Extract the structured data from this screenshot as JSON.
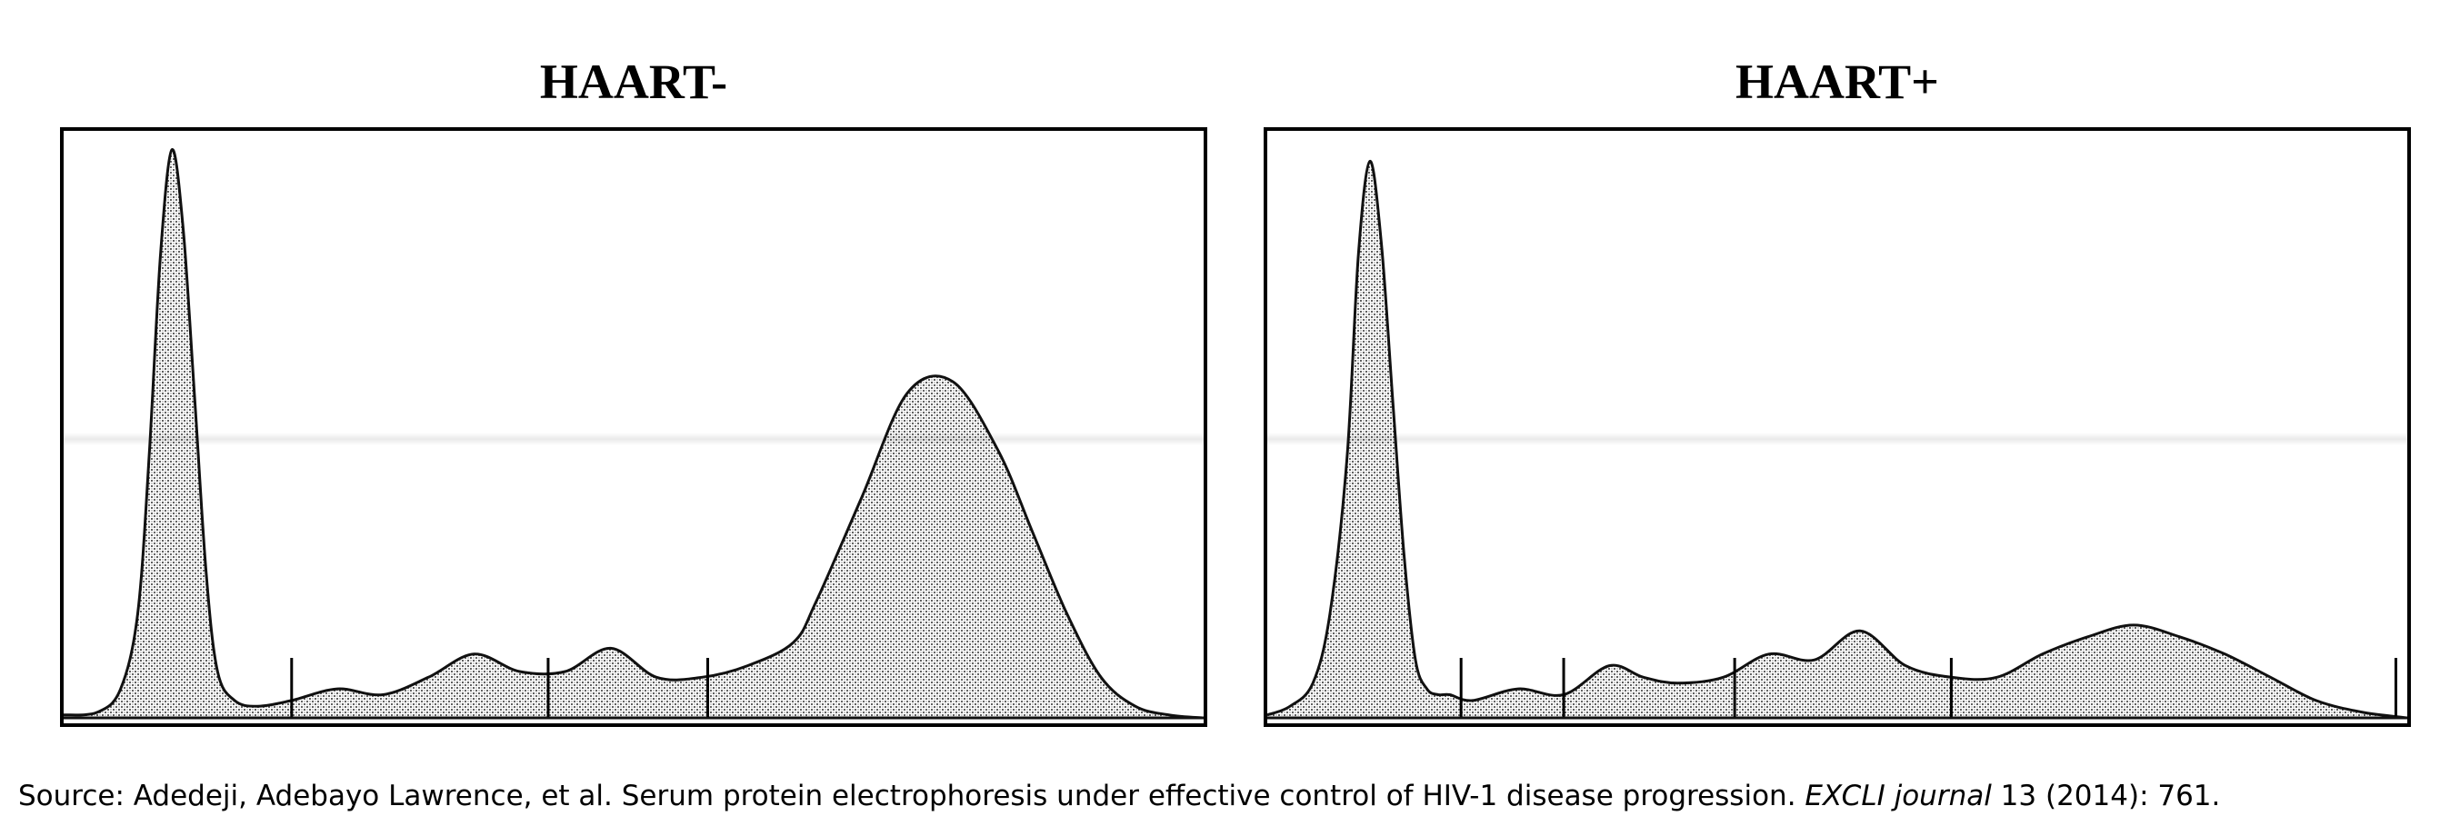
{
  "source": {
    "prefix": "Source: Adedeji, Adebayo Lawrence, et al. Serum protein electrophoresis under effective control of HIV-1 disease progression. ",
    "journal": "EXCLI journal",
    "suffix": " 13 (2014): 761."
  },
  "chart_data": [
    {
      "type": "area",
      "title": "HAART-",
      "xlabel": "",
      "ylabel": "",
      "xlim": [
        0,
        100
      ],
      "ylim": [
        0,
        100
      ],
      "grid": false,
      "x": [
        0,
        3,
        5,
        6.5,
        7.5,
        8.5,
        9.5,
        10.5,
        11.5,
        12.5,
        13.5,
        15,
        17,
        20,
        24,
        28,
        32,
        36,
        40,
        44,
        48,
        52,
        56,
        60,
        64,
        66,
        70,
        74,
        78,
        82,
        85,
        88,
        91,
        94,
        97,
        100
      ],
      "values": [
        0.5,
        1,
        5,
        18,
        45,
        80,
        98,
        84,
        55,
        25,
        8,
        3,
        2,
        3,
        5,
        4,
        7,
        11,
        8,
        8,
        12,
        7,
        7,
        9,
        13,
        20,
        38,
        56,
        58,
        46,
        32,
        18,
        7,
        2,
        0.5,
        0
      ],
      "fraction_dividers_x": [
        20,
        42.5,
        56.5
      ]
    },
    {
      "type": "area",
      "title": "HAART+",
      "xlabel": "",
      "ylabel": "",
      "xlim": [
        0,
        100
      ],
      "ylim": [
        0,
        100
      ],
      "grid": false,
      "x": [
        0,
        2,
        4,
        5.5,
        7,
        8,
        9,
        10,
        11,
        12,
        13,
        14,
        15,
        16,
        18,
        22,
        26,
        30,
        33,
        36,
        40,
        44,
        48,
        52,
        56,
        60,
        64,
        68,
        72,
        76,
        80,
        84,
        88,
        92,
        96,
        100
      ],
      "values": [
        0.5,
        2,
        6,
        18,
        45,
        80,
        96,
        82,
        55,
        28,
        10,
        5,
        4,
        4,
        3,
        5,
        4,
        9,
        7,
        6,
        7,
        11,
        10,
        15,
        9,
        7,
        7,
        11,
        14,
        16,
        14,
        11,
        7,
        3,
        1,
        0
      ],
      "fraction_dividers_x": [
        17,
        26,
        41,
        60,
        99
      ]
    }
  ]
}
